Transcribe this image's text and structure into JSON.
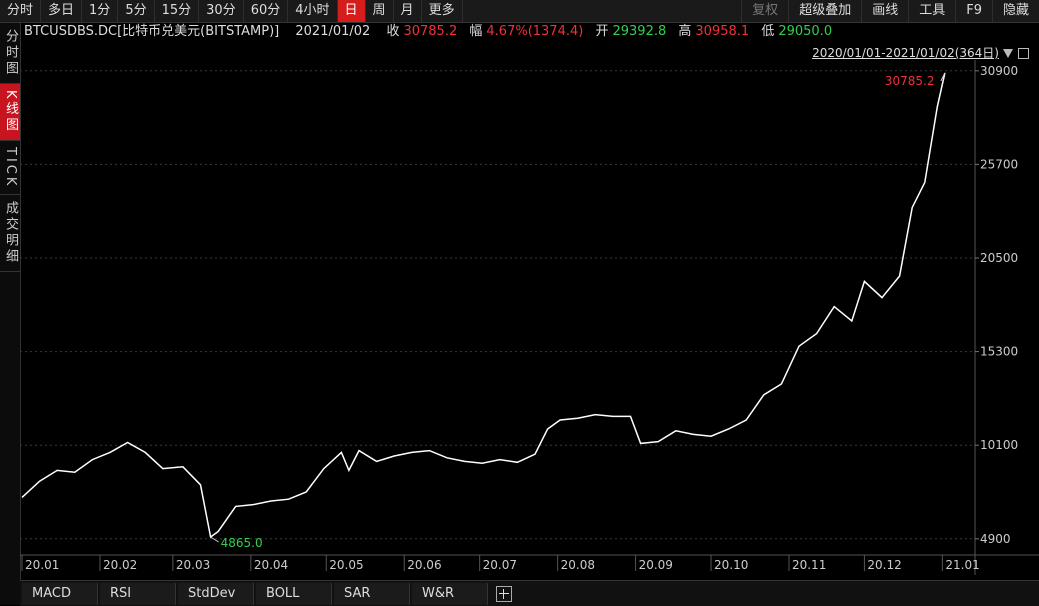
{
  "toolbar": {
    "periods": [
      "分时",
      "多日",
      "1分",
      "5分",
      "15分",
      "30分",
      "60分",
      "4小时",
      "日",
      "周",
      "月",
      "更多"
    ],
    "active": "日",
    "right": [
      "复权",
      "超级叠加",
      "画线",
      "工具",
      "F9",
      "隐藏"
    ]
  },
  "side": [
    "分时图",
    "K线图",
    "TICK",
    "成交明细"
  ],
  "side_active": "K线图",
  "info": {
    "symbol": "BTCUSDBS.DC[比特币兑美元(BITSTAMP)]",
    "date": "2021/01/02",
    "close_label": "收",
    "close": "30785.2",
    "change_label": "幅",
    "change": "4.67%(1374.4)",
    "open_label": "开",
    "open": "29392.8",
    "high_label": "高",
    "high": "30958.1",
    "low_label": "低",
    "low": "29050.0"
  },
  "range_text": "2020/01/01-2021/01/02(364日)",
  "bottom_tabs": [
    "MACD",
    "RSI",
    "StdDev",
    "BOLL",
    "SAR",
    "W&R"
  ],
  "colors": {
    "up": "#f0303a",
    "down": "#30d050",
    "line": "#ffffff",
    "grid": "#3a3a3a"
  },
  "chart_data": {
    "type": "line",
    "ylim": [
      4000,
      31500
    ],
    "y_ticks": [
      "30900",
      "25700",
      "20500",
      "15300",
      "10100",
      "4900"
    ],
    "x_tick_labels": [
      "20.01",
      "20.02",
      "20.03",
      "20.04",
      "20.05",
      "20.06",
      "20.07",
      "20.08",
      "20.09",
      "20.10",
      "20.11",
      "20.12",
      "21.01"
    ],
    "max_label": "30785.2",
    "min_label": "4865.0",
    "series": [
      {
        "x": [
          "2020-01-01",
          "2020-01-08",
          "2020-01-15",
          "2020-01-22",
          "2020-01-29",
          "2020-02-05",
          "2020-02-12",
          "2020-02-19",
          "2020-02-26",
          "2020-03-05",
          "2020-03-12",
          "2020-03-16",
          "2020-03-19",
          "2020-03-26",
          "2020-04-02",
          "2020-04-09",
          "2020-04-16",
          "2020-04-23",
          "2020-04-30",
          "2020-05-07",
          "2020-05-10",
          "2020-05-14",
          "2020-05-21",
          "2020-05-28",
          "2020-06-04",
          "2020-06-11",
          "2020-06-18",
          "2020-06-25",
          "2020-07-02",
          "2020-07-09",
          "2020-07-16",
          "2020-07-23",
          "2020-07-28",
          "2020-08-02",
          "2020-08-09",
          "2020-08-16",
          "2020-08-23",
          "2020-08-30",
          "2020-09-03",
          "2020-09-10",
          "2020-09-17",
          "2020-09-24",
          "2020-10-01",
          "2020-10-08",
          "2020-10-15",
          "2020-10-22",
          "2020-10-29",
          "2020-11-05",
          "2020-11-12",
          "2020-11-19",
          "2020-11-26",
          "2020-12-01",
          "2020-12-08",
          "2020-12-15",
          "2020-12-20",
          "2020-12-25",
          "2020-12-30",
          "2021-01-02"
        ],
        "y": [
          7200,
          8100,
          8700,
          8600,
          9300,
          9700,
          10250,
          9700,
          8800,
          8900,
          7900,
          5000,
          5300,
          6700,
          6800,
          7000,
          7100,
          7500,
          8800,
          9700,
          8700,
          9800,
          9200,
          9500,
          9700,
          9800,
          9400,
          9200,
          9100,
          9300,
          9150,
          9600,
          11000,
          11500,
          11600,
          11800,
          11700,
          11700,
          10200,
          10300,
          10900,
          10700,
          10600,
          11000,
          11500,
          12900,
          13500,
          15600,
          16300,
          17800,
          17000,
          19200,
          18300,
          19500,
          23300,
          24700,
          28900,
          30785.2
        ]
      }
    ]
  }
}
